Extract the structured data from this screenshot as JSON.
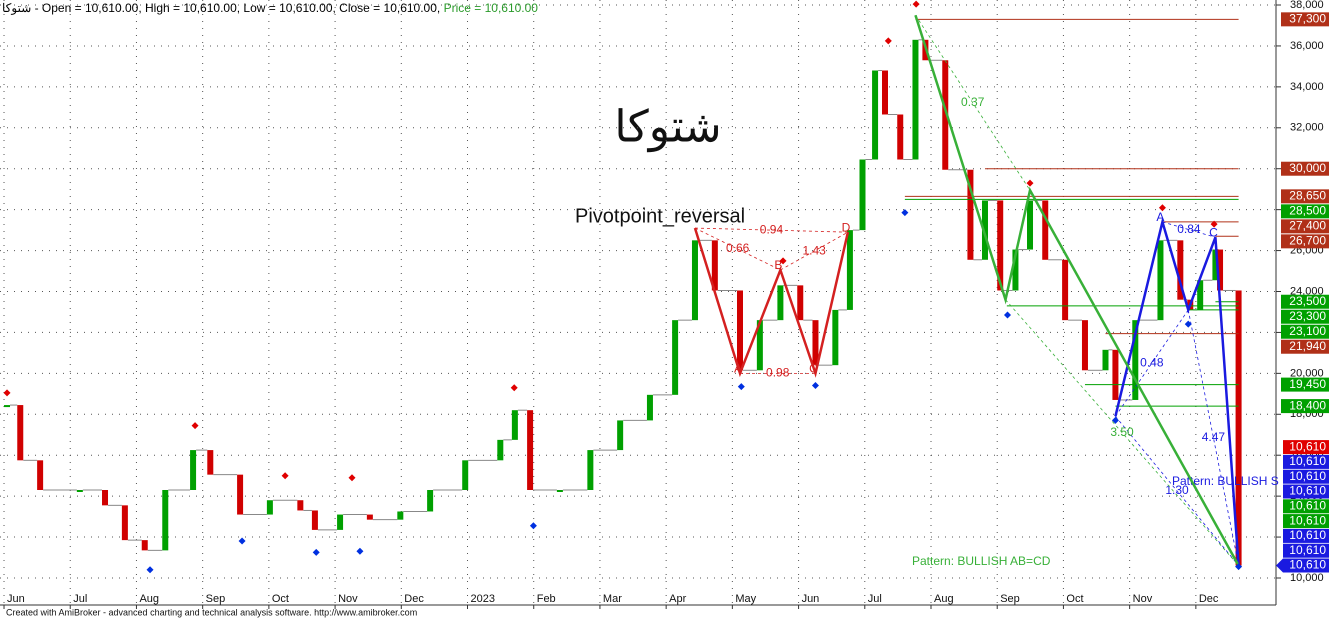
{
  "chart_data": {
    "type": "candlestick-line",
    "ticker": "شتوکا",
    "header": "- Open = 10,610.00, High = 10,610.00, Low = 10,610.00, Close = 10,610.00,",
    "header_price": "Price = 10,610.00",
    "watermark": "شتوکا",
    "system_name": "Pivotpoint_reversal",
    "footer": "Created with AmiBroker - advanced charting and technical analysis software. http://www.amibroker.com",
    "up_color": "#00a000",
    "down_color": "#d00000",
    "grid": true,
    "xlim": [
      -0.106,
      19.15
    ],
    "xticks": [
      {
        "value": 0,
        "label": "Jun"
      },
      {
        "value": 1,
        "label": "Jul"
      },
      {
        "value": 2,
        "label": "Aug"
      },
      {
        "value": 3,
        "label": "Sep"
      },
      {
        "value": 4,
        "label": "Oct"
      },
      {
        "value": 5,
        "label": "Nov"
      },
      {
        "value": 6,
        "label": "Dec"
      },
      {
        "value": 7,
        "label": "2023"
      },
      {
        "value": 8,
        "label": "Feb"
      },
      {
        "value": 9,
        "label": "Mar"
      },
      {
        "value": 10,
        "label": "Apr"
      },
      {
        "value": 11,
        "label": "May"
      },
      {
        "value": 12,
        "label": "Jun"
      },
      {
        "value": 13,
        "label": "Jul"
      },
      {
        "value": 14,
        "label": "Aug"
      },
      {
        "value": 15,
        "label": "Sep"
      },
      {
        "value": 16,
        "label": "Oct"
      },
      {
        "value": 17,
        "label": "Nov"
      },
      {
        "value": 18,
        "label": "Dec"
      }
    ],
    "ylim": [
      8680,
      38245
    ],
    "yticks": [
      {
        "value": 10000,
        "label": "10,000"
      },
      {
        "value": 12000,
        "label": "12,000"
      },
      {
        "value": 14000,
        "label": "14,000"
      },
      {
        "value": 16000,
        "label": "16,000"
      },
      {
        "value": 18000,
        "label": "18,000"
      },
      {
        "value": 20000,
        "label": "20,000"
      },
      {
        "value": 22000,
        "label": "22,000"
      },
      {
        "value": 24000,
        "label": "24,000"
      },
      {
        "value": 26000,
        "label": "26,000"
      },
      {
        "value": 28000,
        "label": "28,000"
      },
      {
        "value": 30000,
        "label": "30,000"
      },
      {
        "value": 32000,
        "label": "32,000"
      },
      {
        "value": 34000,
        "label": "34,000"
      },
      {
        "value": 36000,
        "label": "36,000"
      },
      {
        "value": 38000,
        "label": "38,000"
      }
    ],
    "x": [
      0,
      0.2,
      0.5,
      1.1,
      1.48,
      1.78,
      2.08,
      2.39,
      2.81,
      3.07,
      3.52,
      3.97,
      4.43,
      4.65,
      5.03,
      5.48,
      5.94,
      6.39,
      6.92,
      7.45,
      7.67,
      7.9,
      8.35,
      8.81,
      9.26,
      9.71,
      10.09,
      10.39,
      10.69,
      11.07,
      11.37,
      11.68,
      11.98,
      12.21,
      12.51,
      12.73,
      12.92,
      13.11,
      13.26,
      13.49,
      13.72,
      13.87,
      14.17,
      14.55,
      14.77,
      15,
      15.23,
      15.45,
      15.68,
      15.98,
      16.28,
      16.59,
      16.74,
      17.04,
      17.42,
      17.72,
      17.87,
      18.02,
      18.25,
      18.32,
      18.6
    ],
    "values": [
      18450,
      15750,
      14300,
      14300,
      13550,
      11850,
      11350,
      14300,
      16250,
      15050,
      13100,
      13800,
      13300,
      12350,
      13100,
      12850,
      13250,
      14300,
      15750,
      16750,
      18200,
      14300,
      14300,
      16250,
      17700,
      18950,
      22600,
      26500,
      24050,
      20150,
      22600,
      24300,
      22600,
      20400,
      23100,
      27000,
      30450,
      34800,
      32650,
      30450,
      36300,
      35300,
      29950,
      25550,
      28450,
      24050,
      26050,
      28450,
      25550,
      22600,
      20150,
      21150,
      18700,
      22600,
      26500,
      23600,
      23100,
      24550,
      26050,
      24050,
      10610
    ],
    "pivot_highs": {
      "color": "#e00000",
      "x": [
        0,
        2.84,
        4.2,
        5.21,
        7.66,
        11.72,
        13.31,
        13.73,
        15.45,
        17.45,
        18.23
      ],
      "y": [
        18850,
        17250,
        14800,
        14700,
        19100,
        25300,
        36050,
        37850,
        29100,
        27900,
        27100
      ]
    },
    "pivot_lows": {
      "color": "#0030e0",
      "x": [
        2.16,
        3.55,
        4.67,
        5.33,
        7.95,
        11.09,
        12.21,
        13.56,
        15.11,
        16.74,
        17.84,
        18.6
      ],
      "y": [
        10600,
        12000,
        11450,
        11500,
        12750,
        19550,
        19600,
        28050,
        23050,
        17900,
        22600,
        10750
      ]
    },
    "patterns": [
      {
        "color": "#d42020",
        "x": [
          10.39,
          11.07,
          11.68,
          12.21,
          12.7
        ],
        "y": [
          27100,
          20000,
          25050,
          20000,
          26900
        ],
        "letters": [
          null,
          "A",
          "B",
          "C",
          "D"
        ],
        "ratios": [
          0.94,
          0.66,
          1.43,
          0.98
        ]
      },
      {
        "color": "#1a1ae0",
        "x": [
          16.74,
          17.45,
          17.84,
          18.25,
          18.6
        ],
        "y": [
          17900,
          27400,
          23100,
          26650,
          10610
        ],
        "letters": [
          null,
          "A",
          null,
          "C",
          null
        ],
        "ratios": [
          0.84,
          0.48,
          4.47,
          1.3
        ],
        "ratio_labels": [
          "0.84",
          "0.48",
          "4.47",
          "1.30"
        ],
        "label": "Pattern: BULLISH S"
      },
      {
        "color": "#38b038",
        "x": [
          13.72,
          15.08,
          15.45,
          18.6
        ],
        "y": [
          37500,
          23600,
          28950,
          10610
        ],
        "letters": [
          null,
          null,
          null,
          null
        ],
        "ratios": [
          0.37,
          3.5
        ],
        "ratio_labels": [
          "0.37",
          "3.50"
        ],
        "label": "Pattern: BULLISH AB=CD"
      }
    ],
    "levels": [
      {
        "value": 37300,
        "label": "37,300",
        "color": "#b03018",
        "from": 13.72
      },
      {
        "value": 30000,
        "label": "30,000",
        "color": "#b03018",
        "from": 14.77
      },
      {
        "value": 28650,
        "label": "28,650",
        "color": "#b03018",
        "from": 13.56
      },
      {
        "value": 28500,
        "label": "28,500",
        "color": "#00a000",
        "from": 13.56
      },
      {
        "value": 27400,
        "label": "27,400",
        "color": "#b03018",
        "from": 17.45
      },
      {
        "value": 26700,
        "label": "26,700",
        "color": "#b03018",
        "from": 18.25
      },
      {
        "value": 23500,
        "label": "23,500",
        "color": "#00a000",
        "from": 18.25
      },
      {
        "value": 23300,
        "label": "23,300",
        "color": "#00a000",
        "from": 15.1
      },
      {
        "value": 23100,
        "label": "23,100",
        "color": "#00a000",
        "from": 17.84
      },
      {
        "value": 21940,
        "label": "21,940",
        "color": "#b03018",
        "from": 16.59
      },
      {
        "value": 19450,
        "label": "19,450",
        "color": "#00a000",
        "from": 16.28
      },
      {
        "value": 18400,
        "label": "18,400",
        "color": "#00a000",
        "from": 16.74
      }
    ],
    "last_labels": [
      {
        "value": 10610,
        "label": "10,610",
        "color": "#e00000"
      },
      {
        "value": 10610,
        "label": "10,610",
        "color": "#1a1ae0"
      },
      {
        "value": 10610,
        "label": "10,610",
        "color": "#1a1ae0"
      },
      {
        "value": 10610,
        "label": "10,610",
        "color": "#1a1ae0"
      },
      {
        "value": 10610,
        "label": "10,610",
        "color": "#00a000"
      },
      {
        "value": 10610,
        "label": "10,610",
        "color": "#00a000"
      },
      {
        "value": 10610,
        "label": "10,610",
        "color": "#1a1ae0"
      },
      {
        "value": 10610,
        "label": "10,610",
        "color": "#1a1ae0"
      },
      {
        "value": 10610,
        "label": "10,610",
        "color": "#1a1ae0"
      }
    ]
  }
}
